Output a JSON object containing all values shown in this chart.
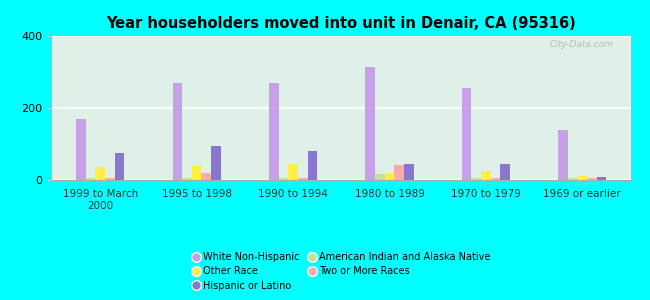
{
  "title": "Year householders moved into unit in Denair, CA (95316)",
  "categories": [
    "1999 to March\n2000",
    "1995 to 1998",
    "1990 to 1994",
    "1980 to 1989",
    "1970 to 1979",
    "1969 or earlier"
  ],
  "series_order": [
    "White Non-Hispanic",
    "American Indian and Alaska Native",
    "Other Race",
    "Two or More Races",
    "Hispanic or Latino"
  ],
  "series": {
    "White Non-Hispanic": [
      170,
      270,
      270,
      315,
      255,
      140
    ],
    "Other Race": [
      35,
      40,
      45,
      20,
      25,
      10
    ],
    "Hispanic or Latino": [
      75,
      95,
      80,
      45,
      45,
      8
    ],
    "American Indian and Alaska Native": [
      5,
      5,
      5,
      18,
      5,
      5
    ],
    "Two or More Races": [
      5,
      20,
      5,
      42,
      5,
      5
    ]
  },
  "colors": {
    "White Non-Hispanic": "#c8a0e8",
    "Other Race": "#ffee44",
    "Hispanic or Latino": "#8877cc",
    "American Indian and Alaska Native": "#ccdd99",
    "Two or More Races": "#ffaaaa"
  },
  "ylim": [
    0,
    400
  ],
  "yticks": [
    0,
    200,
    400
  ],
  "background_color": "#00ffff",
  "watermark": "City-Data.com"
}
